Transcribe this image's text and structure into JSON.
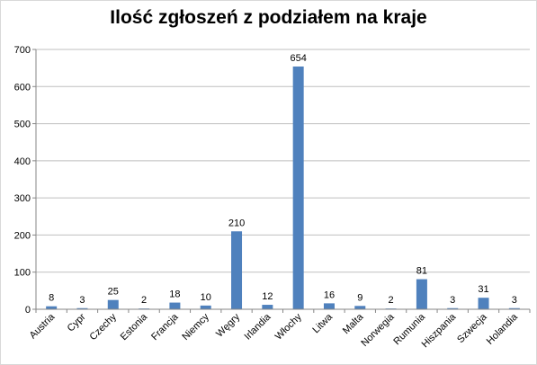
{
  "chart_data": {
    "type": "bar",
    "title": "Ilość zgłoszeń z podziałem na kraje",
    "xlabel": "",
    "ylabel": "",
    "categories": [
      "Austria",
      "Cypr",
      "Czechy",
      "Estonia",
      "Francja",
      "Niemcy",
      "Węgry",
      "Irlandia",
      "Włochy",
      "Litwa",
      "Malta",
      "Norwegia",
      "Rumunia",
      "Hiszpania",
      "Szwecja",
      "Holandia"
    ],
    "values": [
      8,
      3,
      25,
      2,
      18,
      10,
      210,
      12,
      654,
      16,
      9,
      2,
      81,
      3,
      31,
      3
    ],
    "value_labels": [
      "8",
      "3",
      "25",
      "2",
      "18",
      "10",
      "210",
      "12",
      "654",
      "16",
      "9",
      "2",
      "81",
      "3",
      "31",
      "3"
    ],
    "ylim": [
      0,
      700
    ],
    "yticks": [
      0,
      100,
      200,
      300,
      400,
      500,
      600,
      700
    ],
    "ytick_labels": [
      "0",
      "100",
      "200",
      "300",
      "400",
      "500",
      "600",
      "700"
    ],
    "grid": true,
    "legend": "none",
    "bar_color": "#4f81bd",
    "grid_color": "#bfbfbf"
  }
}
